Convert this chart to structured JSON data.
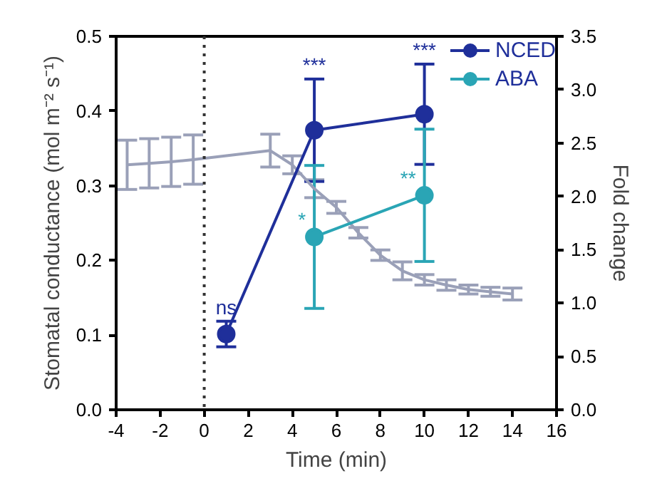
{
  "chart_data": {
    "type": "line",
    "xlabel": "Time (min)",
    "ylabel": "Stomatal conductance (mol m⁻² s⁻¹)",
    "y2label": "Fold change",
    "xlim": [
      -4,
      16
    ],
    "xticks": [
      -4,
      -2,
      0,
      2,
      4,
      6,
      8,
      10,
      12,
      14,
      16
    ],
    "ylim": [
      0,
      0.5
    ],
    "yticks": [
      {
        "value": 0,
        "label": "0.0"
      },
      0.1,
      0.2,
      0.3,
      0.4,
      0.5
    ],
    "y2lim": [
      0,
      3.5
    ],
    "y2ticks": [
      {
        "value": 0,
        "label": "0.0"
      },
      0.5,
      {
        "value": 1,
        "label": "1.0"
      },
      1.5,
      {
        "value": 2,
        "label": "2.0"
      },
      2.5,
      {
        "value": 3,
        "label": "3.0"
      },
      3.5
    ],
    "grid": false,
    "legend": "top right",
    "ref_lines": [
      {
        "axis": "x",
        "value": 0,
        "color": "#333333",
        "line_style": "dotted"
      }
    ],
    "series": [
      {
        "color": "#9aa0b8",
        "marker": "none",
        "x": [
          -3.5,
          -2.5,
          -1.5,
          -0.5,
          3,
          4,
          5,
          6,
          7,
          8,
          9,
          10,
          11,
          12,
          13,
          14
        ],
        "values": [
          0.328,
          0.33,
          0.332,
          0.335,
          0.347,
          0.328,
          0.296,
          0.271,
          0.237,
          0.207,
          0.186,
          0.174,
          0.167,
          0.161,
          0.158,
          0.155
        ],
        "errors": [
          0.033,
          0.033,
          0.033,
          0.033,
          0.022,
          0.012,
          0.012,
          0.008,
          0.007,
          0.007,
          0.012,
          0.007,
          0.007,
          0.006,
          0.006,
          0.008
        ]
      },
      {
        "name": "NCED",
        "color": "#1f2f9a",
        "marker": "circle",
        "axis": "y2",
        "x": [
          1,
          5,
          10
        ],
        "values": [
          0.71,
          2.62,
          2.77
        ],
        "errors": [
          0.12,
          0.48,
          0.47
        ]
      },
      {
        "name": "ABA",
        "color": "#2aa5b5",
        "marker": "circle",
        "axis": "y2",
        "x": [
          5,
          10
        ],
        "values": [
          1.62,
          2.01
        ],
        "errors": [
          0.67,
          0.62
        ]
      }
    ],
    "annotations": [
      "ns",
      "***",
      "***",
      "*",
      "**"
    ]
  }
}
